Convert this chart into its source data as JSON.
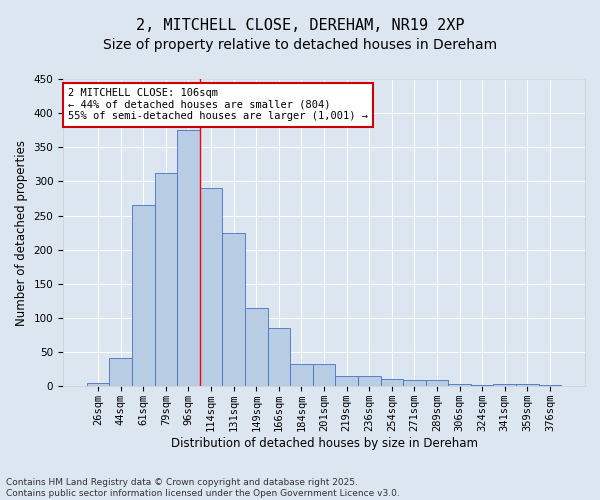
{
  "title_line1": "2, MITCHELL CLOSE, DEREHAM, NR19 2XP",
  "title_line2": "Size of property relative to detached houses in Dereham",
  "xlabel": "Distribution of detached houses by size in Dereham",
  "ylabel": "Number of detached properties",
  "categories": [
    "26sqm",
    "44sqm",
    "61sqm",
    "79sqm",
    "96sqm",
    "114sqm",
    "131sqm",
    "149sqm",
    "166sqm",
    "184sqm",
    "201sqm",
    "219sqm",
    "236sqm",
    "254sqm",
    "271sqm",
    "289sqm",
    "306sqm",
    "324sqm",
    "341sqm",
    "359sqm",
    "376sqm"
  ],
  "values": [
    5,
    42,
    265,
    312,
    375,
    290,
    225,
    115,
    85,
    33,
    33,
    15,
    15,
    10,
    9,
    9,
    4,
    2,
    4,
    4,
    2
  ],
  "bar_color": "#b8cce4",
  "bar_edge_color": "#4472c4",
  "background_color": "#dce6f1",
  "grid_color": "#ffffff",
  "vline_x": 4.5,
  "vline_color": "#ff0000",
  "annotation_text": "2 MITCHELL CLOSE: 106sqm\n← 44% of detached houses are smaller (804)\n55% of semi-detached houses are larger (1,001) →",
  "annotation_box_color": "#ffffff",
  "annotation_box_edge": "#cc0000",
  "ylim": [
    0,
    450
  ],
  "yticks": [
    0,
    50,
    100,
    150,
    200,
    250,
    300,
    350,
    400,
    450
  ],
  "footer_text": "Contains HM Land Registry data © Crown copyright and database right 2025.\nContains public sector information licensed under the Open Government Licence v3.0.",
  "title_fontsize": 11,
  "subtitle_fontsize": 10,
  "axis_label_fontsize": 8.5,
  "tick_fontsize": 7.5,
  "annotation_fontsize": 7.5,
  "footer_fontsize": 6.5
}
